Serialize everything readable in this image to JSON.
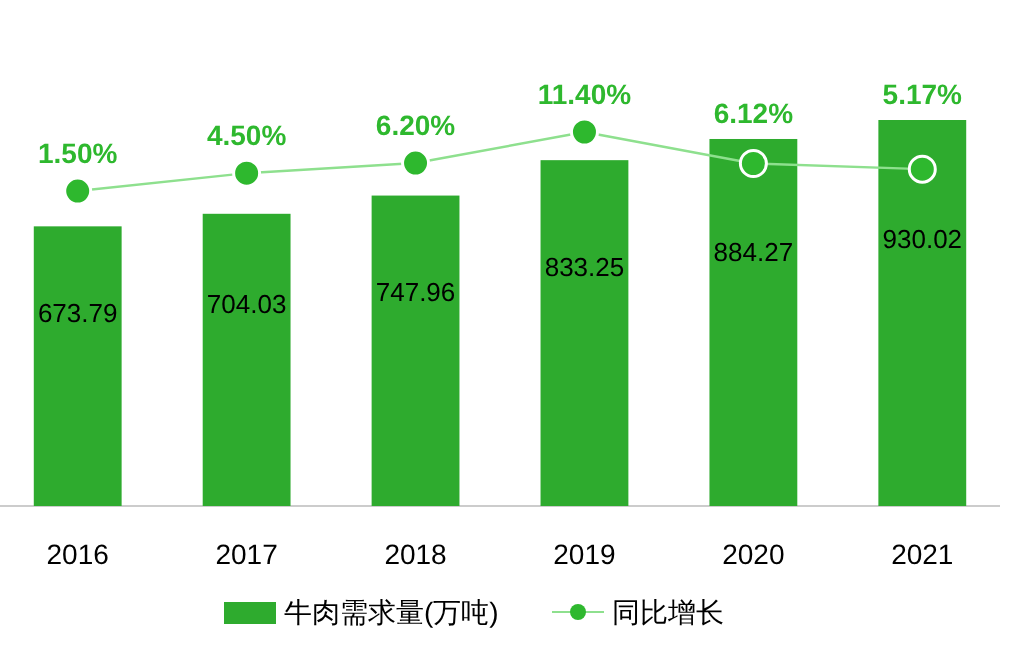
{
  "chart_data": {
    "type": "bar",
    "categories": [
      "2016",
      "2017",
      "2018",
      "2019",
      "2020",
      "2021"
    ],
    "series": [
      {
        "name": "牛肉需求量(万吨)",
        "color": "#2eab2e",
        "values": [
          673.79,
          704.03,
          747.96,
          833.25,
          884.27,
          930.02
        ]
      },
      {
        "name": "同比增长",
        "type": "line",
        "axis": "y2",
        "color": "#2eb82e",
        "values": [
          1.5,
          4.5,
          6.2,
          11.4,
          6.12,
          5.17
        ],
        "value_labels": [
          "1.50%",
          "4.50%",
          "6.20%",
          "11.40%",
          "6.12%",
          "5.17%"
        ]
      }
    ],
    "data_labels": true,
    "marker": "circle",
    "legend": "bottom",
    "grid": false
  }
}
